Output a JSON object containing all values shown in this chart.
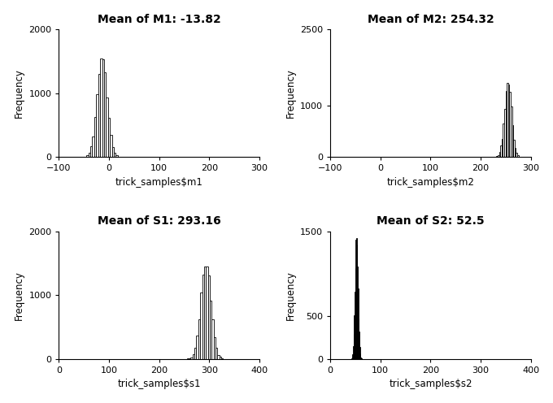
{
  "subplots": [
    {
      "title": "Mean of M1: -13.82",
      "xlabel": "trick_samples$m1",
      "ylabel": "Frequency",
      "mean": -13.82,
      "std": 10,
      "xlim": [
        -100,
        300
      ],
      "ylim": [
        0,
        2000
      ],
      "yticks": [
        0,
        1000,
        2000
      ],
      "xticks": [
        -100,
        0,
        100,
        200,
        300
      ],
      "n_samples": 10000,
      "seed": 42,
      "bins": 20,
      "color": "#ffffff",
      "edgecolor": "#000000"
    },
    {
      "title": "Mean of M2: 254.32",
      "xlabel": "trick_samples$m2",
      "ylabel": "Frequency",
      "mean": 254.32,
      "std": 7,
      "xlim": [
        -100,
        300
      ],
      "ylim": [
        0,
        2500
      ],
      "yticks": [
        0,
        1000,
        2500
      ],
      "xticks": [
        -100,
        0,
        100,
        200,
        300
      ],
      "n_samples": 10000,
      "seed": 43,
      "bins": 20,
      "color": "#ffffff",
      "edgecolor": "#000000"
    },
    {
      "title": "Mean of S1: 293.16",
      "xlabel": "trick_samples$s1",
      "ylabel": "Frequency",
      "mean": 293.16,
      "std": 10,
      "xlim": [
        0,
        400
      ],
      "ylim": [
        0,
        2000
      ],
      "yticks": [
        0,
        1000,
        2000
      ],
      "xticks": [
        0,
        100,
        200,
        300,
        400
      ],
      "n_samples": 10000,
      "seed": 44,
      "bins": 20,
      "color": "#ffffff",
      "edgecolor": "#000000"
    },
    {
      "title": "Mean of S2: 52.5",
      "xlabel": "trick_samples$s2",
      "ylabel": "Frequency",
      "mean": 52.5,
      "std": 3,
      "xlim": [
        0,
        400
      ],
      "ylim": [
        0,
        1500
      ],
      "yticks": [
        0,
        500,
        1500
      ],
      "xticks": [
        0,
        100,
        200,
        300,
        400
      ],
      "n_samples": 10000,
      "seed": 45,
      "bins": 20,
      "color": "#000000",
      "edgecolor": "#000000"
    }
  ],
  "background_color": "#ffffff",
  "title_fontsize": 10,
  "label_fontsize": 8.5,
  "tick_fontsize": 8,
  "figsize": [
    6.8,
    4.96
  ],
  "dpi": 100
}
